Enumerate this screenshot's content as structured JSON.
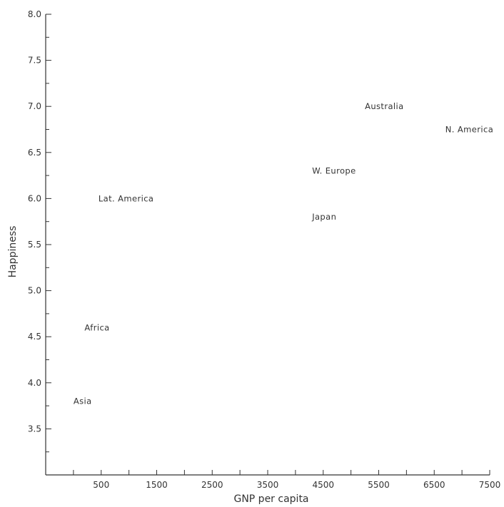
{
  "chart_data": {
    "type": "scatter",
    "title": "",
    "xlabel": "GNP per capita",
    "ylabel": "Happiness",
    "xlim": [
      -500,
      7500
    ],
    "ylim": [
      3.0,
      8.0
    ],
    "x_tick_labels": [
      "500",
      "1500",
      "2500",
      "3500",
      "4500",
      "5500",
      "6500",
      "7500"
    ],
    "x_tick_values": [
      500,
      1500,
      2500,
      3500,
      4500,
      5500,
      6500,
      7500
    ],
    "y_tick_labels": [
      "3.5",
      "4.0",
      "4.5",
      "5.0",
      "5.5",
      "6.0",
      "6.5",
      "7.0",
      "7.5",
      "8.0"
    ],
    "y_tick_values": [
      3.5,
      4.0,
      4.5,
      5.0,
      5.5,
      6.0,
      6.5,
      7.0,
      7.5,
      8.0
    ],
    "grid": false,
    "marker": "text-labels",
    "points": [
      {
        "label": "Asia",
        "x": 0,
        "y": 3.8
      },
      {
        "label": "Africa",
        "x": 200,
        "y": 4.6
      },
      {
        "label": "Lat. America",
        "x": 450,
        "y": 6.0
      },
      {
        "label": "Japan",
        "x": 4300,
        "y": 5.8
      },
      {
        "label": "W. Europe",
        "x": 4300,
        "y": 6.3
      },
      {
        "label": "Australia",
        "x": 5250,
        "y": 7.0
      },
      {
        "label": "N. America",
        "x": 6700,
        "y": 6.75
      }
    ]
  }
}
